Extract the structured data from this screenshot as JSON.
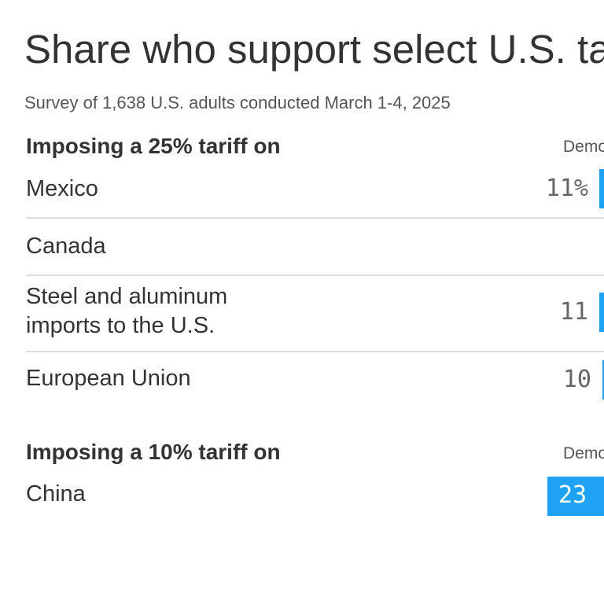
{
  "title": "Share who support select U.S. tariffs",
  "subtitle": "Survey of 1,638 U.S. adults conducted March 1-4, 2025",
  "chart_data": {
    "type": "bar",
    "title": "Share who support select U.S. tariffs",
    "subtitle": "Survey of 1,638 U.S. adults conducted March 1-4, 2025",
    "unit": "%",
    "series_label": "Democrats",
    "colors": {
      "democrats": "#1fa2f4"
    },
    "sections": [
      {
        "header": "Imposing a 25% tariff on",
        "column_header": "Democrats",
        "rows": [
          {
            "label": "Mexico",
            "value": 11,
            "value_label": "11%"
          },
          {
            "label": "Canada",
            "value": null,
            "value_label": ""
          },
          {
            "label_lines": [
              "Steel and aluminum",
              "imports to the U.S."
            ],
            "value": 11,
            "value_label": "11"
          },
          {
            "label": "European Union",
            "value": 10,
            "value_label": "10"
          }
        ]
      },
      {
        "header": "Imposing a 10% tariff on",
        "column_header": "Democrats",
        "rows": [
          {
            "label": "China",
            "value": 23,
            "value_label": "23"
          }
        ]
      }
    ]
  }
}
